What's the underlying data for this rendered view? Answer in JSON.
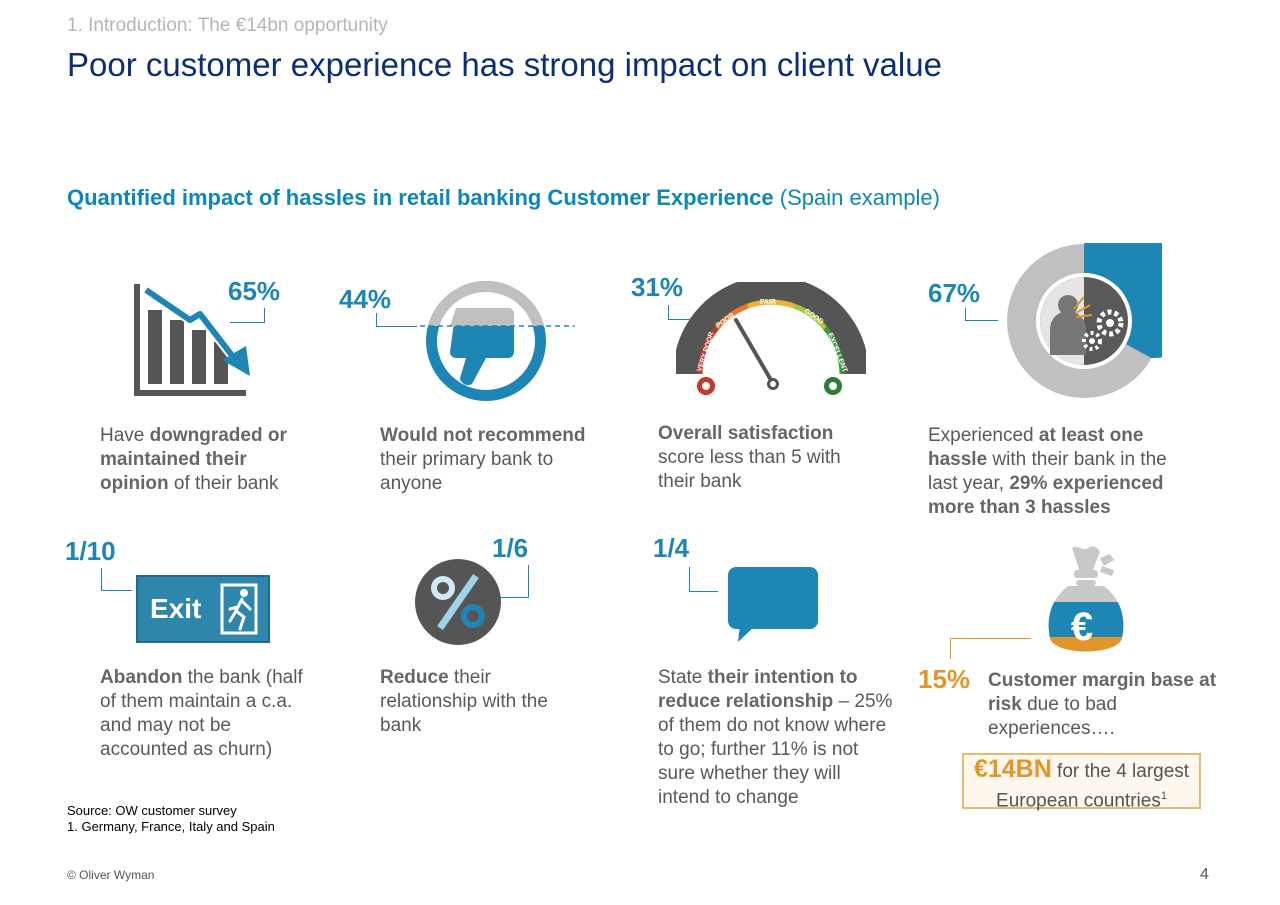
{
  "header": {
    "section": "1. Introduction: The €14bn opportunity",
    "title": "Poor customer experience has strong impact on client value",
    "subtitle_bold": "Quantified impact of hassles in retail banking Customer Experience",
    "subtitle_rest": " (Spain example)"
  },
  "stats": {
    "downgraded": {
      "value": "65%",
      "pre": "Have ",
      "bold": "downgraded or maintained their opinion",
      "post": " of their bank",
      "icon": "declining-chart-icon"
    },
    "not_recommend": {
      "value": "44%",
      "bold": "Would not recommend",
      "post": " their primary bank to anyone",
      "icon": "thumbs-down-icon"
    },
    "satisfaction": {
      "value": "31%",
      "bold": "Overall satisfaction",
      "post": " score less than 5 with their bank",
      "icon": "gauge-icon",
      "gauge_labels": {
        "very_poor": "VERY POOR",
        "poor": "POOR",
        "fair": "FAIR",
        "good": "GOOD",
        "excellent": "EXCELLENT"
      }
    },
    "hassle": {
      "value": "67%",
      "pre": "Experienced ",
      "bold1": "at least one hassle",
      "mid": " with their bank in the last year, ",
      "bold2": "29% experienced more than 3 hassles",
      "icon": "frustrated-person-gears-icon",
      "share": 0.67
    },
    "abandon": {
      "value": "1/10",
      "bold": "Abandon",
      "post": " the bank (half of them maintain a c.a. and may not be accounted as churn)",
      "icon": "exit-sign-icon",
      "exit_label": "Exit"
    },
    "reduce": {
      "value": "1/6",
      "bold": "Reduce",
      "post": " their relationship with the bank",
      "icon": "percent-icon"
    },
    "intention": {
      "value": "1/4",
      "pre": "State ",
      "bold": "their intention to reduce relationship",
      "post": " – 25% of them do not know where to go; further 11% is not sure whether they will intend to change",
      "icon": "speech-bubble-icon"
    },
    "margin": {
      "value": "15%",
      "bold": "Customer margin base at risk",
      "post": " due to bad experiences….",
      "icon": "money-bag-euro-icon",
      "currency_symbol": "€"
    }
  },
  "risk_box": {
    "amount": "€14BN",
    "text": " for the 4 largest European countries",
    "sup": "1"
  },
  "footnotes": {
    "source": "Source: OW customer survey",
    "note1": "1. Germany, France, Italy and Spain"
  },
  "footer": {
    "copyright": "© Oliver Wyman",
    "page": "4"
  },
  "colors": {
    "navy": "#0a2f74",
    "blue": "#1e86b5",
    "teal": "#0b88b6",
    "grey": "#555555",
    "orange": "#e2962a"
  }
}
